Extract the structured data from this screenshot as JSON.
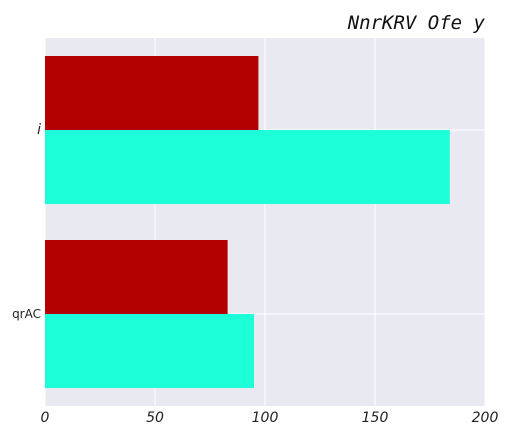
{
  "chart_data": {
    "type": "bar",
    "orientation": "horizontal",
    "title": "NnrKRV Ofe y",
    "categories": [
      "i",
      "qrAC"
    ],
    "series": [
      {
        "values": [
          97,
          83
        ],
        "color": "#b40000"
      },
      {
        "values": [
          184,
          95
        ],
        "color": "#1cffd8"
      }
    ],
    "xlim": [
      0,
      200
    ],
    "xticks": [
      "0",
      "50",
      "100",
      "150",
      "200"
    ],
    "xlabel": "",
    "ylabel": "",
    "grid": true,
    "legend": "none",
    "background": "#e9e9f2"
  }
}
